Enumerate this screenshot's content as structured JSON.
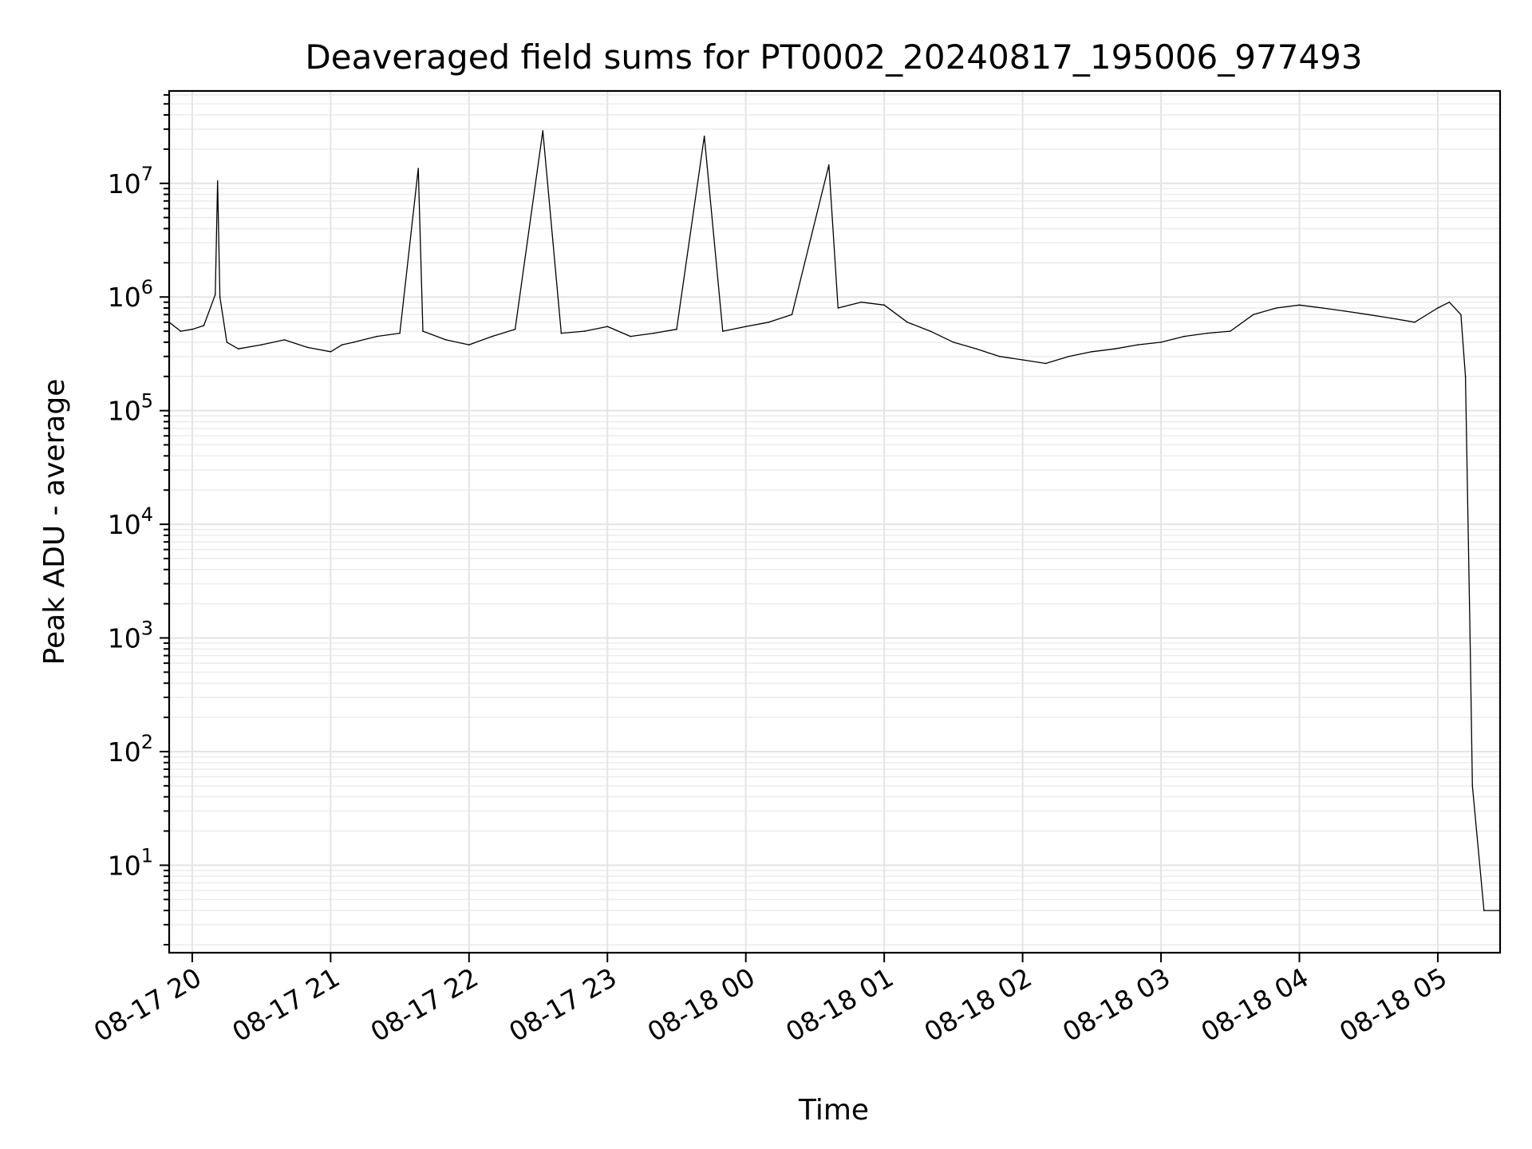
{
  "chart_data": {
    "type": "line",
    "title": "Deaveraged field sums for PT0002_20240817_195006_977493",
    "xlabel": "Time",
    "ylabel": "Peak ADU - average",
    "yscale": "log",
    "ylim": [
      1.7,
      65000000
    ],
    "xlim": [
      "2024-08-17T19:50:00",
      "2024-08-18T05:27:00"
    ],
    "grid": true,
    "x_ticks": [
      "08-17 20",
      "08-17 21",
      "08-17 22",
      "08-17 23",
      "08-18 00",
      "08-18 01",
      "08-18 02",
      "08-18 03",
      "08-18 04",
      "08-18 05"
    ],
    "y_ticks": [
      {
        "base": "10",
        "exp": "1",
        "value": 10
      },
      {
        "base": "10",
        "exp": "2",
        "value": 100
      },
      {
        "base": "10",
        "exp": "3",
        "value": 1000
      },
      {
        "base": "10",
        "exp": "4",
        "value": 10000
      },
      {
        "base": "10",
        "exp": "5",
        "value": 100000
      },
      {
        "base": "10",
        "exp": "6",
        "value": 1000000
      },
      {
        "base": "10",
        "exp": "7",
        "value": 10000000
      }
    ],
    "series": [
      {
        "color": "#000000",
        "x": [
          "2024-08-17T19:50:00",
          "2024-08-17T19:55:00",
          "2024-08-17T20:00:00",
          "2024-08-17T20:05:00",
          "2024-08-17T20:10:00",
          "2024-08-17T20:11:00",
          "2024-08-17T20:12:00",
          "2024-08-17T20:15:00",
          "2024-08-17T20:20:00",
          "2024-08-17T20:30:00",
          "2024-08-17T20:40:00",
          "2024-08-17T20:50:00",
          "2024-08-17T21:00:00",
          "2024-08-17T21:05:00",
          "2024-08-17T21:10:00",
          "2024-08-17T21:20:00",
          "2024-08-17T21:30:00",
          "2024-08-17T21:38:00",
          "2024-08-17T21:40:00",
          "2024-08-17T21:50:00",
          "2024-08-17T22:00:00",
          "2024-08-17T22:10:00",
          "2024-08-17T22:20:00",
          "2024-08-17T22:32:00",
          "2024-08-17T22:40:00",
          "2024-08-17T22:50:00",
          "2024-08-17T23:00:00",
          "2024-08-17T23:10:00",
          "2024-08-17T23:20:00",
          "2024-08-17T23:30:00",
          "2024-08-17T23:42:00",
          "2024-08-17T23:50:00",
          "2024-08-18T00:00:00",
          "2024-08-18T00:10:00",
          "2024-08-18T00:20:00",
          "2024-08-18T00:36:00",
          "2024-08-18T00:40:00",
          "2024-08-18T00:50:00",
          "2024-08-18T01:00:00",
          "2024-08-18T01:10:00",
          "2024-08-18T01:20:00",
          "2024-08-18T01:30:00",
          "2024-08-18T01:40:00",
          "2024-08-18T01:50:00",
          "2024-08-18T02:00:00",
          "2024-08-18T02:10:00",
          "2024-08-18T02:20:00",
          "2024-08-18T02:30:00",
          "2024-08-18T02:40:00",
          "2024-08-18T02:50:00",
          "2024-08-18T03:00:00",
          "2024-08-18T03:10:00",
          "2024-08-18T03:20:00",
          "2024-08-18T03:30:00",
          "2024-08-18T03:40:00",
          "2024-08-18T03:50:00",
          "2024-08-18T04:00:00",
          "2024-08-18T04:10:00",
          "2024-08-18T04:20:00",
          "2024-08-18T04:30:00",
          "2024-08-18T04:40:00",
          "2024-08-18T04:50:00",
          "2024-08-18T05:00:00",
          "2024-08-18T05:05:00",
          "2024-08-18T05:10:00",
          "2024-08-18T05:12:00",
          "2024-08-18T05:14:00",
          "2024-08-18T05:15:00",
          "2024-08-18T05:20:00",
          "2024-08-18T05:27:00"
        ],
        "values": [
          600000,
          500000,
          520000,
          560000,
          1050000,
          10500000,
          1000000,
          400000,
          350000,
          380000,
          420000,
          360000,
          330000,
          380000,
          400000,
          450000,
          480000,
          13500000,
          500000,
          420000,
          380000,
          450000,
          520000,
          29000000,
          480000,
          500000,
          550000,
          450000,
          480000,
          520000,
          26000000,
          500000,
          550000,
          600000,
          700000,
          14500000,
          800000,
          900000,
          850000,
          600000,
          500000,
          400000,
          350000,
          300000,
          280000,
          260000,
          300000,
          330000,
          350000,
          380000,
          400000,
          450000,
          480000,
          500000,
          700000,
          800000,
          850000,
          800000,
          750000,
          700000,
          650000,
          600000,
          800000,
          900000,
          700000,
          200000,
          1000,
          50,
          4,
          4
        ]
      }
    ]
  }
}
